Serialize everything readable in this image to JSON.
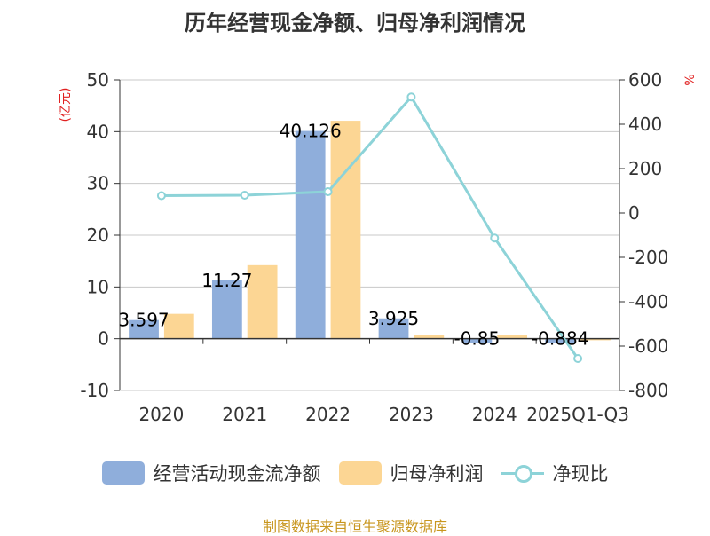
{
  "title": "历年经营现金净额、归母净利润情况",
  "source": "制图数据来自恒生聚源数据库",
  "colors": {
    "series1": "#8faedb",
    "series2": "#fcd694",
    "series3": "#8dd3d8"
  },
  "chart_data": {
    "type": "bar+line",
    "categories": [
      "2020",
      "2021",
      "2022",
      "2023",
      "2024",
      "2025Q1-Q3"
    ],
    "series": [
      {
        "name": "经营活动现金流净额",
        "type": "bar",
        "axis": "left",
        "values": [
          3.597,
          11.27,
          40.126,
          3.925,
          -0.85,
          -0.884
        ]
      },
      {
        "name": "归母净利润",
        "type": "bar",
        "axis": "left",
        "values": [
          4.8,
          14.2,
          42.1,
          0.75,
          0.75,
          -0.3
        ]
      },
      {
        "name": "净现比",
        "type": "line",
        "axis": "right",
        "values": [
          78,
          80,
          96,
          523,
          -113,
          -656
        ]
      }
    ],
    "data_labels": [
      "3.597",
      "11.27",
      "40.126",
      "3.925",
      "-0.85",
      "-0.884"
    ],
    "left_axis": {
      "label": "(亿元)",
      "ylim": [
        -10,
        50
      ],
      "ticks": [
        "-10",
        "0",
        "10",
        "20",
        "30",
        "40",
        "50"
      ]
    },
    "right_axis": {
      "label": "%",
      "ylim": [
        -800,
        600
      ],
      "ticks": [
        "-800",
        "-600",
        "-400",
        "-200",
        "0",
        "200",
        "400",
        "600"
      ]
    },
    "legend_position": "bottom",
    "grid": true
  }
}
